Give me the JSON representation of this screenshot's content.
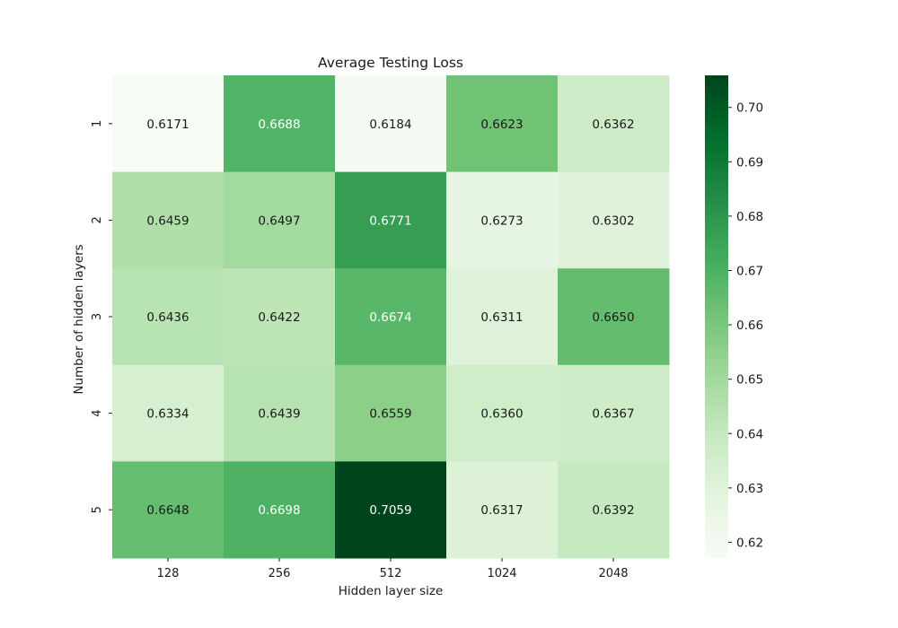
{
  "chart_data": {
    "type": "heatmap",
    "title": "Average Testing Loss",
    "xlabel": "Hidden layer size",
    "ylabel": "Number of hidden layers",
    "x_categories": [
      "128",
      "256",
      "512",
      "1024",
      "2048"
    ],
    "y_categories": [
      "1",
      "2",
      "3",
      "4",
      "5"
    ],
    "values": [
      [
        0.6171,
        0.6688,
        0.6184,
        0.6623,
        0.6362
      ],
      [
        0.6459,
        0.6497,
        0.6771,
        0.6273,
        0.6302
      ],
      [
        0.6436,
        0.6422,
        0.6674,
        0.6311,
        0.665
      ],
      [
        0.6334,
        0.6439,
        0.6559,
        0.636,
        0.6367
      ],
      [
        0.6648,
        0.6698,
        0.7059,
        0.6317,
        0.6392
      ]
    ],
    "value_format": "0.0000",
    "colormap": "Greens",
    "colorbar": {
      "range": [
        0.6171,
        0.7059
      ],
      "ticks": [
        0.62,
        0.63,
        0.64,
        0.65,
        0.66,
        0.67,
        0.68,
        0.69,
        0.7
      ],
      "tick_labels": [
        "0.62",
        "0.63",
        "0.64",
        "0.65",
        "0.66",
        "0.67",
        "0.68",
        "0.69",
        "0.70"
      ]
    },
    "grid": false
  }
}
